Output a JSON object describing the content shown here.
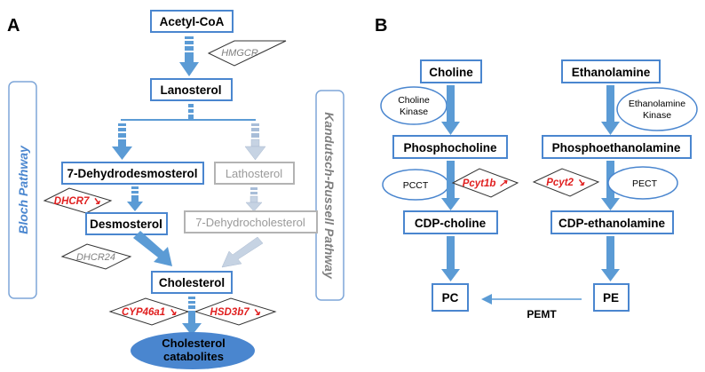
{
  "panels": {
    "a_label": "A",
    "b_label": "B"
  },
  "colors": {
    "accent_blue": "#4a86cf",
    "arrow_blue": "#5b9bd5",
    "enzyme_red": "#e02020",
    "muted_grey": "#9a9a9a"
  },
  "panel_a": {
    "nodes": {
      "acetyl_coa": "Acetyl-CoA",
      "lanosterol": "Lanosterol",
      "dehydrodesmosterol": "7-Dehydrodesmosterol",
      "desmosterol": "Desmosterol",
      "lathosterol": "Lathosterol",
      "dehydrocholesterol": "7-Dehydrocholesterol",
      "cholesterol": "Cholesterol",
      "catabolites_line1": "Cholesterol",
      "catabolites_line2": "catabolites"
    },
    "enzymes": {
      "hmgcr": "HMGCR",
      "dhcr7": "DHCR7 ↘",
      "dhcr24": "DHCR24",
      "cyp46a1": "CYP46a1 ↘",
      "hsd3b7": "HSD3b7 ↘"
    },
    "pathways": {
      "bloch": "Bloch Pathway",
      "kandutsch": "Kandutsch-Russell Pathway"
    }
  },
  "panel_b": {
    "nodes": {
      "choline": "Choline",
      "phosphocholine": "Phosphocholine",
      "cdp_choline": "CDP-choline",
      "pc": "PC",
      "ethanolamine": "Ethanolamine",
      "phosphoethanolamine": "Phosphoethanolamine",
      "cdp_ethanolamine": "CDP-ethanolamine",
      "pe": "PE"
    },
    "enzymes": {
      "choline_kinase_line1": "Choline",
      "choline_kinase_line2": "Kinase",
      "ethanolamine_kinase_line1": "Ethanolamine",
      "ethanolamine_kinase_line2": "Kinase",
      "pcct": "PCCT",
      "pcyt1b": "Pcyt1b ↗",
      "pcyt2": "Pcyt2 ↘",
      "pect": "PECT",
      "pemt": "PEMT"
    }
  }
}
